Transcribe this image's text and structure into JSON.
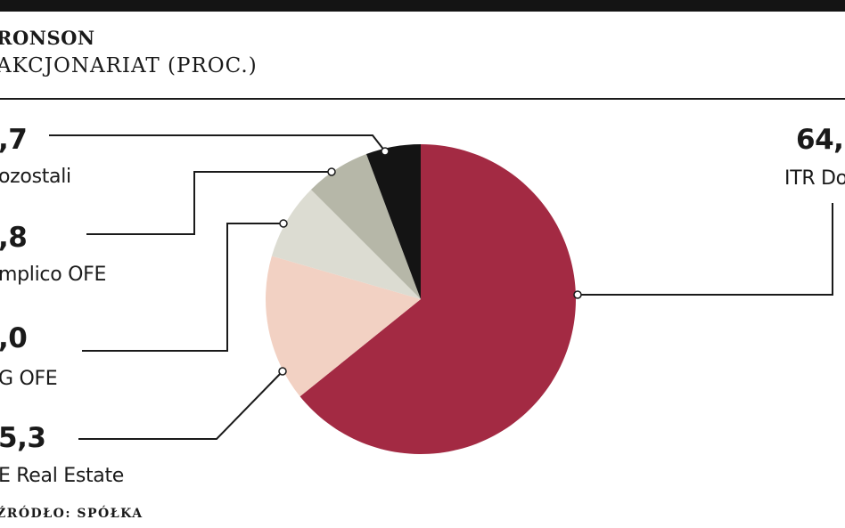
{
  "header": {
    "title": "RONSON",
    "subtitle": "AKCJONARIAT (PROC.)"
  },
  "source": "ŹRÓDŁO: SPÓŁKA",
  "colors": {
    "itr": "#a32a43",
    "real_estate": "#f2d1c3",
    "ing": "#dcdcd2",
    "aviva": "#b6b7a8",
    "pozostali": "#141414"
  },
  "labels": {
    "itr_value": "64,",
    "itr_name": "ITR Do",
    "pozostali_value": ",7",
    "pozostali_name": "ozostali",
    "aviva_value": ",8",
    "aviva_name": "mplico OFE",
    "ing_value": ",0",
    "ing_name": "G OFE",
    "real_estate_value": "5,3",
    "real_estate_name": "E Real Estate"
  },
  "chart_data": {
    "type": "pie",
    "title": "AKCJONARIAT (PROC.)",
    "start": "12 o'clock",
    "direction": "clockwise",
    "slices": [
      {
        "label": "ITR Do",
        "value": 64.2,
        "color": "#a32a43"
      },
      {
        "label": "E Real Estate",
        "value": 15.3,
        "color": "#f2d1c3"
      },
      {
        "label": "G OFE",
        "value": 8.0,
        "color": "#dcdcd2"
      },
      {
        "label": "mplico OFE",
        "value": 6.8,
        "color": "#b6b7a8"
      },
      {
        "label": "ozostali",
        "value": 5.7,
        "color": "#141414"
      }
    ]
  }
}
